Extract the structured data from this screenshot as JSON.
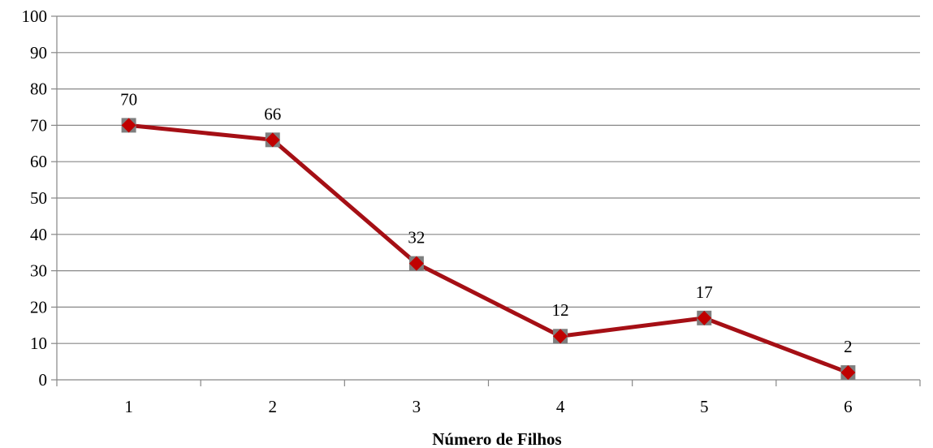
{
  "chart_data": {
    "type": "line",
    "title": "",
    "xlabel": "Número de Filhos",
    "ylabel": "",
    "categories": [
      "1",
      "2",
      "3",
      "4",
      "5",
      "6"
    ],
    "series": [
      {
        "values": [
          70,
          66,
          32,
          12,
          17,
          2
        ],
        "color": "#a50f15",
        "marker_color": "#c00000",
        "marker_shadow_color": "#7f7f7f"
      }
    ],
    "data_labels": [
      "70",
      "66",
      "32",
      "12",
      "17",
      "2"
    ],
    "ylim": [
      0,
      100
    ],
    "yticks": [
      "0",
      "10",
      "20",
      "30",
      "40",
      "50",
      "60",
      "70",
      "80",
      "90",
      "100"
    ],
    "grid": true,
    "legend": "none",
    "colors": {
      "gridline": "#878787",
      "axis": "#878787"
    }
  }
}
